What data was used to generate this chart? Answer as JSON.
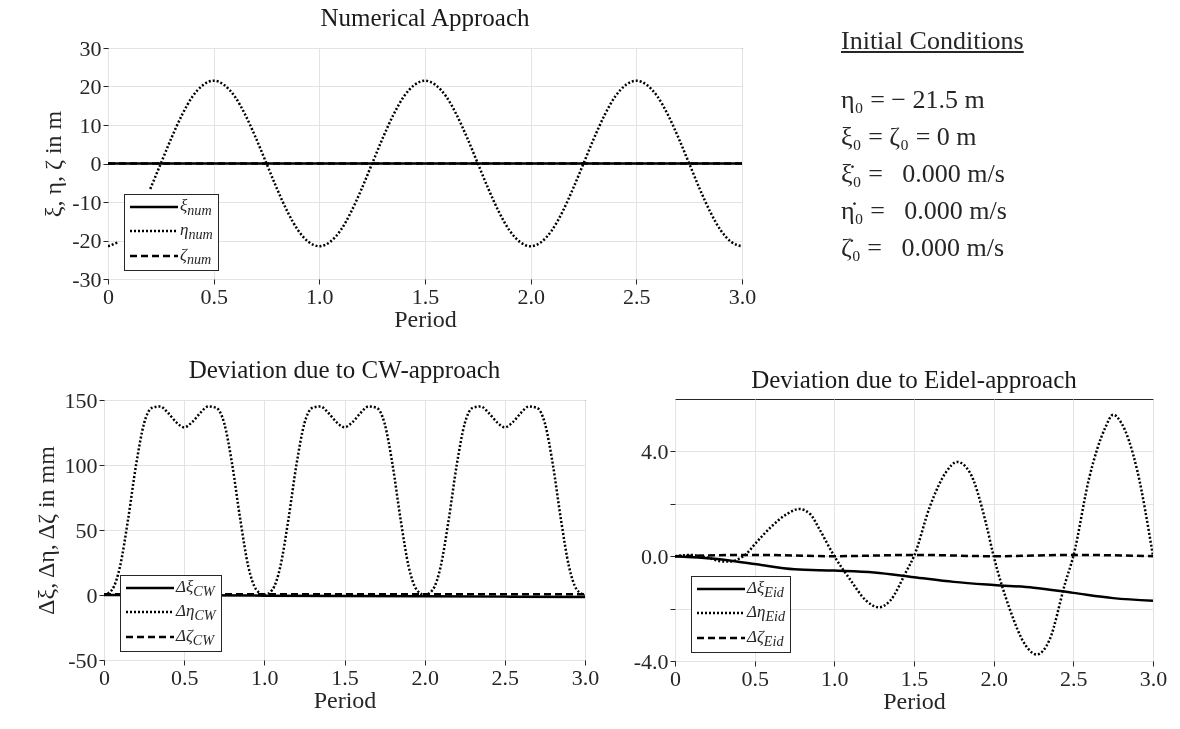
{
  "chart_data": [
    {
      "type": "line",
      "title": "Numerical Approach",
      "xlabel": "Period",
      "ylabel": "ξ, η, ζ in m",
      "xlim": [
        0,
        3
      ],
      "xticks": [
        0,
        0.5,
        {
          "value": 1,
          "label": "1.0"
        },
        1.5,
        {
          "value": 2,
          "label": "2.0"
        },
        2.5,
        {
          "value": 3,
          "label": "3.0"
        }
      ],
      "ylim": [
        -30,
        30
      ],
      "yticks": [
        -30,
        -20,
        -10,
        0,
        10,
        20,
        30
      ],
      "grid": true,
      "legend": "bottom left",
      "series": [
        {
          "name": "ξ$_{num}$",
          "color": "#000000",
          "line_style": "solid",
          "x": [
            0,
            3
          ],
          "values": [
            0,
            0
          ]
        },
        {
          "name": "η$_{num}$",
          "color": "#000000",
          "line_style": "dotted",
          "x": [
            0,
            0.05,
            0.1,
            0.15,
            0.2,
            0.25,
            0.3,
            0.35,
            0.4,
            0.45,
            0.5,
            0.55,
            0.6,
            0.65,
            0.7,
            0.75,
            0.8,
            0.85,
            0.9,
            0.95,
            1,
            1.05,
            1.1,
            1.15,
            1.2,
            1.25,
            1.3,
            1.35,
            1.4,
            1.45,
            1.5,
            1.55,
            1.6,
            1.65,
            1.7,
            1.75,
            1.8,
            1.85,
            1.9,
            1.95,
            2,
            2.05,
            2.1,
            2.15,
            2.2,
            2.25,
            2.3,
            2.35,
            2.4,
            2.45,
            2.5,
            2.55,
            2.6,
            2.65,
            2.7,
            2.75,
            2.8,
            2.85,
            2.9,
            2.95,
            3
          ],
          "values": [
            -21.5,
            -20.4,
            null,
            null,
            -6.6,
            0,
            6.6,
            12.6,
            17.4,
            20.4,
            21.5,
            20.4,
            17.4,
            12.6,
            6.6,
            0,
            -6.6,
            -12.6,
            -17.4,
            -20.4,
            -21.5,
            -20.4,
            -17.4,
            -12.6,
            -6.6,
            0,
            6.6,
            12.6,
            17.4,
            20.4,
            21.5,
            20.4,
            17.4,
            12.6,
            6.6,
            0,
            -6.6,
            -12.6,
            -17.4,
            -20.4,
            -21.5,
            -20.4,
            -17.4,
            -12.6,
            -6.6,
            0,
            6.6,
            12.6,
            17.4,
            20.4,
            21.5,
            20.4,
            17.4,
            12.6,
            6.6,
            0,
            -6.6,
            -12.6,
            -17.4,
            -20.4,
            -21.5
          ]
        },
        {
          "name": "ζ$_{num}$",
          "color": "#000000",
          "line_style": "dashed",
          "x": [
            0,
            3
          ],
          "values": [
            0,
            0
          ]
        }
      ]
    },
    {
      "type": "other",
      "title": "Initial Conditions",
      "annotations": [
        "η₀ = − 21.5 m",
        "ξ₀ = ζ₀ = 0 m",
        "ξ̇₀ =   0.000 m/s",
        "η̇₀ =   0.000 m/s",
        "ζ̇₀ =   0.000 m/s"
      ]
    },
    {
      "type": "line",
      "title": "Deviation due to CW-approach",
      "xlabel": "Period",
      "ylabel": "Δξ, Δη, Δζ in mm",
      "xlim": [
        0,
        3
      ],
      "xticks": [
        0,
        0.5,
        {
          "value": 1,
          "label": "1.0"
        },
        1.5,
        {
          "value": 2,
          "label": "2.0"
        },
        2.5,
        {
          "value": 3,
          "label": "3.0"
        }
      ],
      "ylim": [
        -50,
        150
      ],
      "yticks": [
        -50,
        0,
        50,
        100,
        150
      ],
      "grid": true,
      "legend": "bottom left",
      "series": [
        {
          "name": "Δξ$_{CW}$",
          "color": "#000000",
          "line_style": "solid",
          "x": [
            0,
            1,
            2,
            3
          ],
          "values": [
            0,
            -0.5,
            -1,
            -1.5
          ]
        },
        {
          "name": "Δη$_{CW}$",
          "color": "#000000",
          "line_style": "dotted",
          "x": [
            0,
            0.05,
            0.1,
            0.15,
            0.2,
            0.25,
            0.3,
            0.35,
            0.4,
            0.45,
            0.5,
            0.55,
            0.6,
            0.65,
            0.7,
            0.75,
            0.8,
            0.85,
            0.9,
            0.95,
            1,
            1.05,
            1.1,
            1.15,
            1.2,
            1.25,
            1.3,
            1.35,
            1.4,
            1.45,
            1.5,
            1.55,
            1.6,
            1.65,
            1.7,
            1.75,
            1.8,
            1.85,
            1.9,
            1.95,
            2,
            2.05,
            2.1,
            2.15,
            2.2,
            2.25,
            2.3,
            2.35,
            2.4,
            2.45,
            2.5,
            2.55,
            2.6,
            2.65,
            2.7,
            2.75,
            2.8,
            2.85,
            2.9,
            2.95,
            3
          ],
          "values": [
            0,
            4,
            22,
            58,
            100,
            132,
            144,
            145,
            140,
            133,
            129,
            133,
            140,
            145,
            144,
            132,
            100,
            58,
            22,
            4,
            0,
            4,
            22,
            58,
            100,
            132,
            144,
            145,
            140,
            133,
            129,
            133,
            140,
            145,
            144,
            132,
            100,
            58,
            22,
            4,
            0,
            4,
            22,
            58,
            100,
            132,
            144,
            145,
            140,
            133,
            129,
            133,
            140,
            145,
            144,
            132,
            100,
            58,
            22,
            4,
            0
          ]
        },
        {
          "name": "Δζ$_{CW}$",
          "color": "#000000",
          "line_style": "dashed",
          "x": [
            0,
            3
          ],
          "values": [
            0.5,
            0.5
          ]
        }
      ]
    },
    {
      "type": "line",
      "title": "Deviation due to Eidel-approach",
      "xlabel": "Period",
      "xlim": [
        0,
        3
      ],
      "xticks": [
        0,
        0.5,
        {
          "value": 1,
          "label": "1.0"
        },
        1.5,
        {
          "value": 2,
          "label": "2.0"
        },
        2.5,
        {
          "value": 3,
          "label": "3.0"
        }
      ],
      "ylim": [
        -4,
        6
      ],
      "yticks": [
        {
          "value": -4,
          "label": "-4.0"
        },
        {
          "value": -2,
          "label": null
        },
        {
          "value": 0,
          "label": "0.0"
        },
        {
          "value": 2,
          "label": null
        },
        {
          "value": 4,
          "label": "4.0"
        }
      ],
      "grid": true,
      "legend": "bottom left",
      "series": [
        {
          "name": "Δξ$_{Eid}$",
          "color": "#000000",
          "line_style": "solid",
          "x": [
            0,
            0.25,
            0.5,
            0.75,
            1,
            1.25,
            1.5,
            1.75,
            2,
            2.25,
            2.5,
            2.75,
            3
          ],
          "values": [
            0,
            -0.1,
            -0.3,
            -0.5,
            -0.55,
            -0.62,
            -0.8,
            -0.98,
            -1.1,
            -1.2,
            -1.4,
            -1.6,
            -1.7
          ]
        },
        {
          "name": "Δη$_{Eid}$",
          "color": "#000000",
          "line_style": "dotted",
          "x": [
            0,
            0.1,
            0.2,
            0.3,
            0.35,
            0.4,
            0.45,
            0.5,
            0.6,
            0.7,
            0.78,
            0.85,
            0.9,
            1,
            1.1,
            1.2,
            1.28,
            1.35,
            1.45,
            1.5,
            1.6,
            1.7,
            1.77,
            1.85,
            1.95,
            2,
            2.1,
            2.2,
            2.27,
            2.35,
            2.45,
            2.5,
            2.6,
            2.7,
            2.75,
            2.8,
            2.9,
            3
          ],
          "values": [
            0,
            0.05,
            -0.05,
            -0.2,
            -0.2,
            -0.1,
            0.1,
            0.45,
            1.1,
            1.6,
            1.8,
            1.6,
            1.1,
            0,
            -0.9,
            -1.7,
            -1.95,
            -1.7,
            -0.6,
            0,
            1.9,
            3.2,
            3.6,
            3.2,
            1.3,
            0,
            -2,
            -3.4,
            -3.75,
            -3.2,
            -1,
            0,
            3,
            4.9,
            5.4,
            5.1,
            3.3,
            0
          ]
        },
        {
          "name": "Δζ$_{Eid}$",
          "color": "#000000",
          "line_style": "dashed",
          "x": [
            0,
            0.5,
            1,
            1.5,
            2,
            2.5,
            3
          ],
          "values": [
            0,
            0.05,
            0,
            0.05,
            0,
            0.05,
            0
          ]
        }
      ]
    }
  ]
}
